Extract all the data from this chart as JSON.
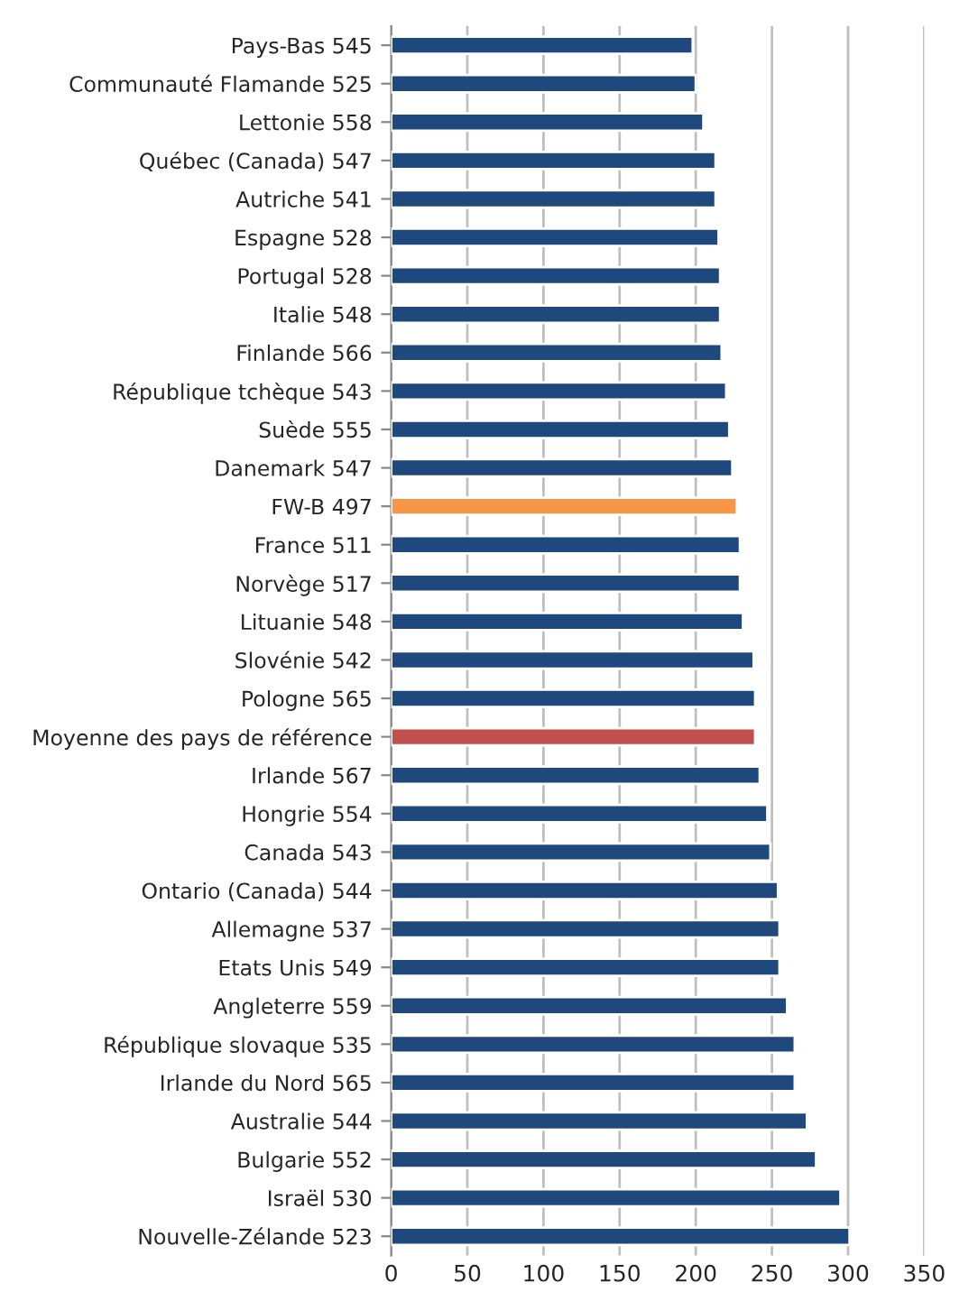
{
  "chart_data": {
    "type": "bar",
    "orientation": "horizontal",
    "categories": [
      "Pays-Bas 545",
      "Communauté Flamande 525",
      "Lettonie 558",
      "Québec (Canada) 547",
      "Autriche 541",
      "Espagne 528",
      "Portugal 528",
      "Italie 548",
      "Finlande 566",
      "République tchèque 543",
      "Suède 555",
      "Danemark 547",
      "FW-B 497",
      "France 511",
      "Norvège 517",
      "Lituanie 548",
      "Slovénie 542",
      "Pologne 565",
      "Moyenne des pays de référence",
      "Irlande 567",
      "Hongrie 554",
      "Canada 543",
      "Ontario (Canada) 544",
      "Allemagne 537",
      "Etats Unis 549",
      "Angleterre 559",
      "République slovaque 535",
      "Irlande du Nord 565",
      "Australie 544",
      "Bulgarie 552",
      "Israël 530",
      "Nouvelle-Zélande 523"
    ],
    "values": [
      198,
      200,
      205,
      213,
      213,
      215,
      216,
      216,
      217,
      220,
      222,
      224,
      227,
      229,
      229,
      231,
      238,
      239,
      239,
      242,
      247,
      249,
      254,
      255,
      255,
      260,
      265,
      265,
      273,
      279,
      295,
      301
    ],
    "colors": [
      "#1f497d",
      "#1f497d",
      "#1f497d",
      "#1f497d",
      "#1f497d",
      "#1f497d",
      "#1f497d",
      "#1f497d",
      "#1f497d",
      "#1f497d",
      "#1f497d",
      "#1f497d",
      "#f79646",
      "#1f497d",
      "#1f497d",
      "#1f497d",
      "#1f497d",
      "#1f497d",
      "#c0504d",
      "#1f497d",
      "#1f497d",
      "#1f497d",
      "#1f497d",
      "#1f497d",
      "#1f497d",
      "#1f497d",
      "#1f497d",
      "#1f497d",
      "#1f497d",
      "#1f497d",
      "#1f497d",
      "#1f497d"
    ],
    "xlim": [
      0,
      350
    ],
    "xticks": [
      0,
      50,
      100,
      150,
      200,
      250,
      300,
      350
    ],
    "grid": "x"
  }
}
